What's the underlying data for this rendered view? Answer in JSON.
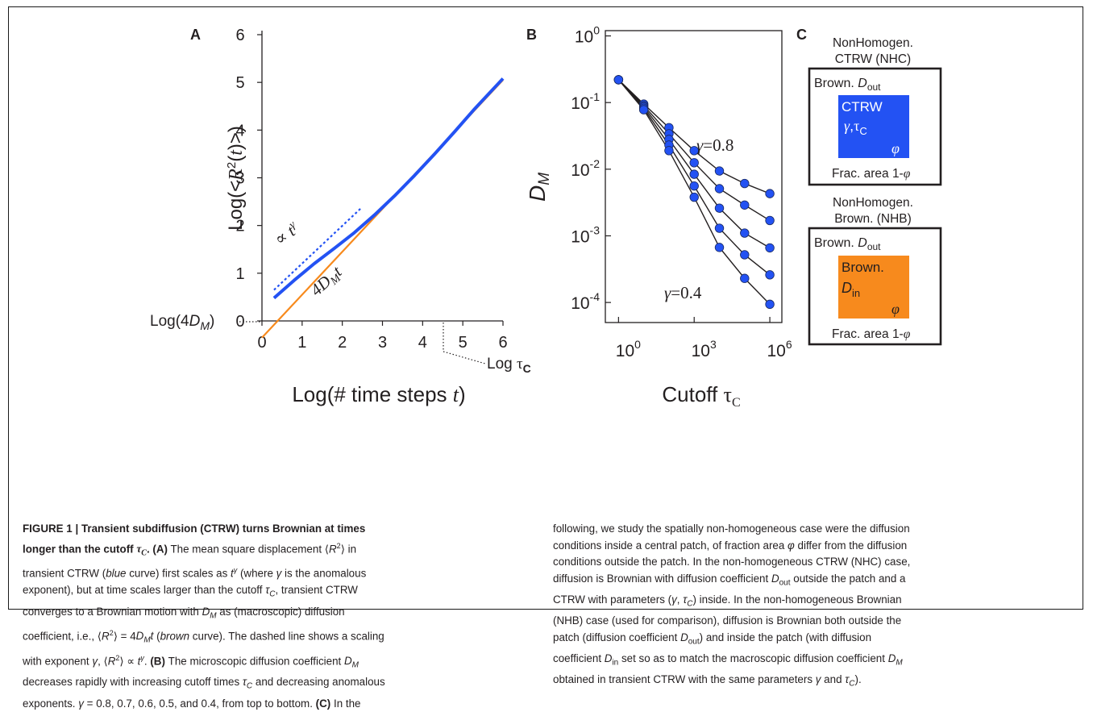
{
  "figure": {
    "panel_a": {
      "label": "A",
      "y_ticks": [
        "0",
        "1",
        "2",
        "3",
        "4",
        "5",
        "6"
      ],
      "x_ticks": [
        "0",
        "1",
        "2",
        "3",
        "4",
        "5",
        "6"
      ],
      "y_label": "Log(<R²(t)>)",
      "x_label": "Log(# time steps t)",
      "intercept_label": "Log(4D_M)",
      "cutoff_label": "Log τ_C",
      "line_label": "4D_M t",
      "slope_label": "∝ t^γ"
    },
    "panel_b": {
      "label": "B",
      "y_ticks": [
        "10^0",
        "10^-1",
        "10^-2",
        "10^-3",
        "10^-4"
      ],
      "x_ticks": [
        "10^0",
        "10^3",
        "10^6"
      ],
      "y_label": "D_M",
      "x_label": "Cutoff τ_C",
      "gamma_top": "γ=0.8",
      "gamma_bottom": "γ=0.4"
    },
    "panel_c": {
      "label": "C",
      "nhc_title_1": "NonHomogen.",
      "nhc_title_2": "CTRW (NHC)",
      "nhc_outer": "Brown. D_out",
      "nhc_inner_1": "CTRW",
      "nhc_inner_2": "γ,τ_C",
      "nhc_phi": "φ",
      "nhc_frac": "Frac. area 1-φ",
      "nhb_title_1": "NonHomogen.",
      "nhb_title_2": "Brown. (NHB)",
      "nhb_outer": "Brown. D_out",
      "nhb_inner_1": "Brown.",
      "nhb_inner_2": "D_in",
      "nhb_phi": "φ",
      "nhb_frac": "Frac. area 1-φ",
      "colors": {
        "ctrw": "#2352f3",
        "brown": "#f78a1d"
      }
    }
  },
  "chart_data": [
    {
      "type": "line",
      "panel": "A",
      "xlabel": "Log(# time steps t)",
      "ylabel": "Log(<R²(t)>)",
      "xlim": [
        0,
        6
      ],
      "ylim": [
        0,
        6
      ],
      "series": [
        {
          "color": "#f78a1d",
          "x": [
            0,
            6
          ],
          "y": [
            -0.35,
            5.05
          ]
        },
        {
          "color": "#2352f3",
          "x": [
            0.3,
            0.8,
            1.3,
            1.8,
            2.3,
            2.8,
            3.3,
            3.8,
            4.3,
            4.8,
            5.3,
            6.0
          ],
          "y": [
            0.48,
            0.85,
            1.2,
            1.52,
            1.85,
            2.22,
            2.62,
            3.05,
            3.5,
            3.97,
            4.45,
            5.08
          ]
        },
        {
          "color": "#2352f3",
          "dashed": true,
          "x": [
            0.3,
            2.45
          ],
          "y": [
            0.65,
            2.35
          ]
        }
      ]
    },
    {
      "type": "line",
      "panel": "B",
      "xlabel": "Cutoff τ_C",
      "ylabel": "D_M",
      "x_scale": "log",
      "y_scale": "log",
      "xlim": [
        0.3,
        3000000
      ],
      "ylim": [
        5e-05,
        1.2
      ],
      "series": [
        {
          "color": "#2352f3",
          "x": [
            1,
            10,
            100,
            1000,
            10000,
            100000,
            1000000
          ],
          "y": [
            0.22,
            0.095,
            0.042,
            0.019,
            0.0094,
            0.0061,
            0.0043
          ]
        },
        {
          "color": "#2352f3",
          "x": [
            1,
            10,
            100,
            1000,
            10000,
            100000,
            1000000
          ],
          "y": [
            0.22,
            0.09,
            0.034,
            0.0125,
            0.0051,
            0.0029,
            0.0017
          ]
        },
        {
          "color": "#2352f3",
          "x": [
            1,
            10,
            100,
            1000,
            10000,
            100000,
            1000000
          ],
          "y": [
            0.22,
            0.086,
            0.028,
            0.0084,
            0.0026,
            0.0011,
            0.00066
          ]
        },
        {
          "color": "#2352f3",
          "x": [
            1,
            10,
            100,
            1000,
            10000,
            100000,
            1000000
          ],
          "y": [
            0.22,
            0.082,
            0.023,
            0.0056,
            0.0013,
            0.00052,
            0.00026
          ]
        },
        {
          "color": "#2352f3",
          "x": [
            1,
            10,
            100,
            1000,
            10000,
            100000,
            1000000
          ],
          "y": [
            0.22,
            0.078,
            0.019,
            0.0038,
            0.00067,
            0.00023,
            9.4e-05
          ]
        }
      ]
    }
  ],
  "caption": {
    "left_lines": [
      "FIGURE 1 | Transient subdiffusion (CTRW) turns Brownian at times",
      "longer than the cutoff τC. (A) The mean square displacement ⟨R2⟩ in",
      "transient CTRW (blue curve) first scales as tγ (where γ is the anomalous",
      "exponent), but at time scales larger than the cutoff τC, transient CTRW",
      "converges to a Brownian motion with DM as (macroscopic) diffusion",
      "coefficient, i.e., ⟨R2⟩ = 4DMt (brown curve). The dashed line shows a scaling",
      "with exponent γ, ⟨R2⟩ ∝ tγ. (B) The microscopic diffusion coefficient DM",
      "decreases rapidly with increasing cutoff times τC and decreasing anomalous",
      "exponents. γ = 0.8, 0.7, 0.6, 0.5, and 0.4, from top to bottom. (C) In the"
    ],
    "right_lines": [
      "following, we study the spatially non-homogeneous case were the diffusion",
      "conditions inside a central patch, of fraction area φ differ from the diffusion",
      "conditions outside the patch. In the non-homogeneous CTRW (NHC) case,",
      "diffusion is Brownian with diffusion coefficient Dout outside the patch and a",
      "CTRW with parameters (γ,  τC) inside. In the non-homogeneous Brownian",
      "(NHB) case (used for comparison), diffusion is Brownian both outside the",
      "patch (diffusion coefficient Dout) and inside the patch (with diffusion",
      "coefficient Din set so as to match the macroscopic diffusion coefficient DM",
      "obtained in transient CTRW with the same parameters γ and τC)."
    ]
  }
}
